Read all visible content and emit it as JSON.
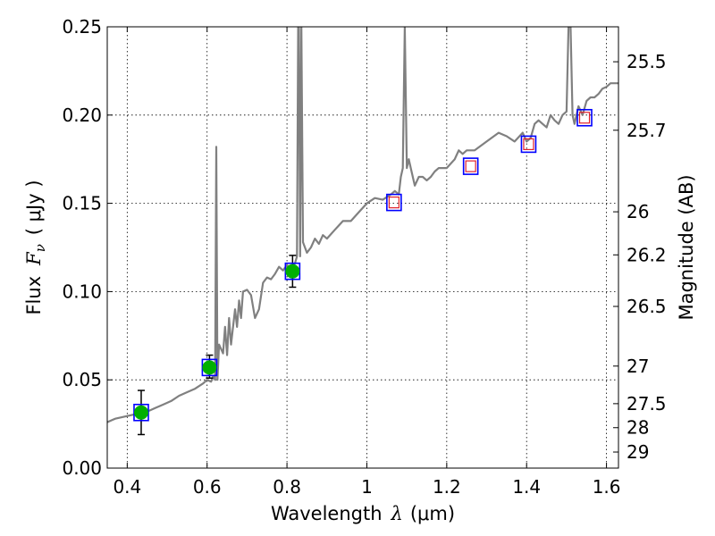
{
  "chart_data": {
    "type": "line",
    "title": "",
    "xlabel": {
      "text": "Wavelength",
      "symbol": "λ",
      "unit": "(μm)"
    },
    "ylabel": {
      "text": "Flux",
      "symbol": "F",
      "subscript": "ν",
      "unit": "( μJy )"
    },
    "ylabel_right": "Magnitude (AB)",
    "xlim": [
      0.35,
      1.63
    ],
    "ylim": [
      0.0,
      0.25
    ],
    "grid": true,
    "x_ticks": [
      {
        "value": 0.4,
        "label": "0.4"
      },
      {
        "value": 0.6,
        "label": "0.6"
      },
      {
        "value": 0.8,
        "label": "0.8"
      },
      {
        "value": 1.0,
        "label": "1"
      },
      {
        "value": 1.2,
        "label": "1.2"
      },
      {
        "value": 1.4,
        "label": "1.4"
      },
      {
        "value": 1.6,
        "label": "1.6"
      }
    ],
    "y_ticks": [
      {
        "value": 0.0,
        "label": "0.00"
      },
      {
        "value": 0.05,
        "label": "0.05"
      },
      {
        "value": 0.1,
        "label": "0.10"
      },
      {
        "value": 0.15,
        "label": "0.15"
      },
      {
        "value": 0.2,
        "label": "0.20"
      },
      {
        "value": 0.25,
        "label": "0.25"
      }
    ],
    "right_ticks": [
      {
        "label": "25.5",
        "flux": 0.2302
      },
      {
        "label": "25.7",
        "flux": 0.1914
      },
      {
        "label": "26",
        "flux": 0.1452
      },
      {
        "label": "26.2",
        "flux": 0.1208
      },
      {
        "label": "26.5",
        "flux": 0.0916
      },
      {
        "label": "27",
        "flux": 0.0578
      },
      {
        "label": "27.5",
        "flux": 0.0365
      },
      {
        "label": "28",
        "flux": 0.0229
      },
      {
        "label": "29",
        "flux": 0.0091
      }
    ],
    "series": [
      {
        "name": "model_spectrum",
        "color": "#808080",
        "x": [
          0.35,
          0.37,
          0.39,
          0.41,
          0.43,
          0.45,
          0.47,
          0.49,
          0.51,
          0.53,
          0.55,
          0.57,
          0.59,
          0.6,
          0.61,
          0.615,
          0.62,
          0.623,
          0.626,
          0.63,
          0.64,
          0.645,
          0.65,
          0.655,
          0.66,
          0.67,
          0.675,
          0.68,
          0.685,
          0.69,
          0.7,
          0.71,
          0.72,
          0.73,
          0.74,
          0.75,
          0.76,
          0.77,
          0.78,
          0.79,
          0.8,
          0.81,
          0.82,
          0.825,
          0.828,
          0.83,
          0.833,
          0.836,
          0.84,
          0.85,
          0.86,
          0.87,
          0.88,
          0.89,
          0.9,
          0.92,
          0.94,
          0.96,
          0.98,
          1.0,
          1.02,
          1.04,
          1.06,
          1.07,
          1.08,
          1.085,
          1.09,
          1.095,
          1.1,
          1.105,
          1.11,
          1.12,
          1.13,
          1.14,
          1.15,
          1.16,
          1.17,
          1.18,
          1.2,
          1.22,
          1.23,
          1.24,
          1.25,
          1.27,
          1.3,
          1.33,
          1.35,
          1.37,
          1.39,
          1.4,
          1.41,
          1.42,
          1.43,
          1.44,
          1.45,
          1.46,
          1.47,
          1.48,
          1.49,
          1.5,
          1.505,
          1.51,
          1.515,
          1.52,
          1.53,
          1.54,
          1.55,
          1.56,
          1.57,
          1.58,
          1.59,
          1.6,
          1.61,
          1.62,
          1.63
        ],
        "y": [
          0.026,
          0.028,
          0.029,
          0.03,
          0.031,
          0.032,
          0.034,
          0.036,
          0.038,
          0.041,
          0.043,
          0.045,
          0.048,
          0.05,
          0.049,
          0.052,
          0.05,
          0.182,
          0.05,
          0.07,
          0.065,
          0.08,
          0.064,
          0.085,
          0.07,
          0.09,
          0.08,
          0.095,
          0.085,
          0.1,
          0.101,
          0.098,
          0.085,
          0.09,
          0.105,
          0.108,
          0.107,
          0.11,
          0.114,
          0.112,
          0.115,
          0.113,
          0.116,
          0.12,
          0.25,
          0.25,
          0.12,
          0.25,
          0.128,
          0.122,
          0.125,
          0.13,
          0.127,
          0.132,
          0.13,
          0.135,
          0.14,
          0.14,
          0.145,
          0.15,
          0.153,
          0.152,
          0.155,
          0.157,
          0.155,
          0.165,
          0.17,
          0.25,
          0.17,
          0.175,
          0.17,
          0.16,
          0.165,
          0.165,
          0.163,
          0.165,
          0.168,
          0.17,
          0.17,
          0.175,
          0.18,
          0.178,
          0.18,
          0.18,
          0.185,
          0.19,
          0.188,
          0.185,
          0.19,
          0.185,
          0.187,
          0.195,
          0.197,
          0.195,
          0.193,
          0.2,
          0.197,
          0.195,
          0.2,
          0.202,
          0.25,
          0.25,
          0.2,
          0.195,
          0.205,
          0.2,
          0.208,
          0.21,
          0.21,
          0.212,
          0.215,
          0.216,
          0.218,
          0.218,
          0.218
        ]
      }
    ],
    "observed_points": [
      {
        "x": 0.435,
        "y": 0.0315,
        "err_low": 0.0125,
        "err_high": 0.0125
      },
      {
        "x": 0.606,
        "y": 0.057,
        "err_low": 0.006,
        "err_high": 0.007
      },
      {
        "x": 0.814,
        "y": 0.1115,
        "err_low": 0.009,
        "err_high": 0.009
      }
    ],
    "observed_color": "#00b000",
    "model_box_points": [
      {
        "x": 0.435,
        "y": 0.0315
      },
      {
        "x": 0.606,
        "y": 0.057
      },
      {
        "x": 0.814,
        "y": 0.1115
      },
      {
        "x": 1.068,
        "y": 0.1505
      },
      {
        "x": 1.26,
        "y": 0.171
      },
      {
        "x": 1.405,
        "y": 0.1835
      },
      {
        "x": 1.545,
        "y": 0.1985
      }
    ],
    "box_color": "#0000ff",
    "upper_limit_points": [
      {
        "x": 1.068,
        "y": 0.1505
      },
      {
        "x": 1.26,
        "y": 0.171
      },
      {
        "x": 1.405,
        "y": 0.1835
      },
      {
        "x": 1.545,
        "y": 0.1985
      }
    ],
    "upper_limit_color": "#e0202c"
  }
}
